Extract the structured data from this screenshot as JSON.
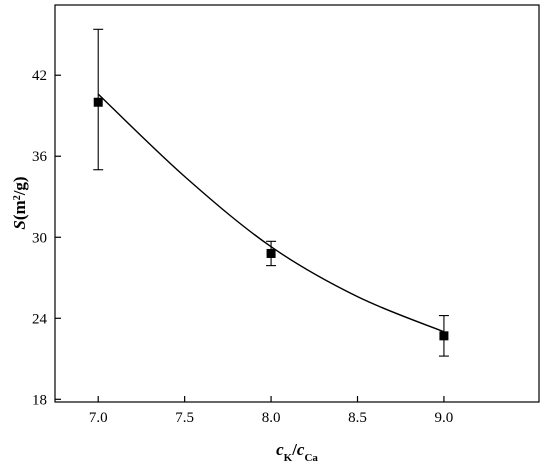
{
  "chart_data": {
    "type": "scatter",
    "title": "",
    "xlabel": {
      "main": "c",
      "sub1": "K",
      "slash": "/",
      "main2": "c",
      "sub2": "Ca"
    },
    "ylabel": {
      "main": "S",
      "unit_open": "(m",
      "unit_sup": "2",
      "unit_close": "/g)"
    },
    "xlim": [
      6.75,
      9.55
    ],
    "ylim": [
      17.8,
      47.2
    ],
    "x_ticks": [
      7.0,
      7.5,
      8.0,
      8.5,
      9.0
    ],
    "x_tick_labels": [
      "7.0",
      "7.5",
      "8.0",
      "8.5",
      "9.0"
    ],
    "y_ticks": [
      18,
      24,
      30,
      36,
      42
    ],
    "y_tick_labels": [
      "18",
      "24",
      "30",
      "36",
      "42"
    ],
    "grid": false,
    "legend": "none",
    "series": [
      {
        "marker": "square",
        "color": "#000000",
        "points": [
          {
            "x": 7.0,
            "y": 40.0,
            "err_low": 35.0,
            "err_high": 45.4
          },
          {
            "x": 8.0,
            "y": 28.8,
            "err_low": 27.9,
            "err_high": 29.7
          },
          {
            "x": 9.0,
            "y": 22.7,
            "err_low": 21.2,
            "err_high": 24.2
          }
        ]
      }
    ],
    "fit_curve": {
      "type": "smooth",
      "color": "#000000",
      "points": [
        [
          7.0,
          40.6
        ],
        [
          7.5,
          34.5
        ],
        [
          8.0,
          29.3
        ],
        [
          8.5,
          25.6
        ],
        [
          9.0,
          23.0
        ]
      ]
    }
  }
}
